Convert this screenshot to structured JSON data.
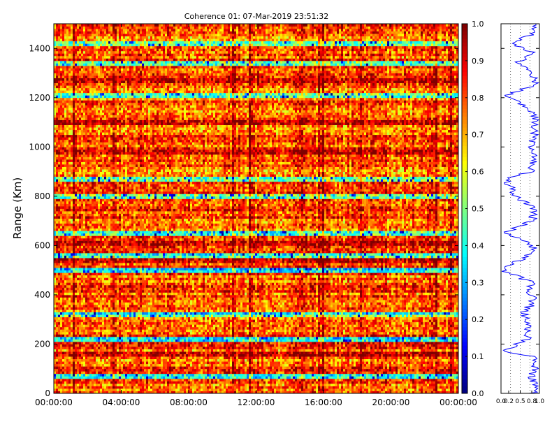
{
  "chart_data": [
    {
      "type": "heatmap",
      "title": "Coherence 01: 07-Mar-2019 23:51:32",
      "xlabel": "",
      "ylabel": "Range (Km)",
      "x_ticks": [
        "00:00:00",
        "04:00:00",
        "08:00:00",
        "12:00:00",
        "16:00:00",
        "20:00:00",
        "00:00:00"
      ],
      "y_ticks": [
        0,
        200,
        400,
        600,
        800,
        1000,
        1200,
        1400
      ],
      "ylim": [
        0,
        1500
      ],
      "x_range_hours": [
        0,
        24
      ],
      "colorbar": {
        "colormap": "jet",
        "ticks": [
          "0.0",
          "0.1",
          "0.2",
          "0.3",
          "0.4",
          "0.5",
          "0.6",
          "0.7",
          "0.8",
          "0.9",
          "1.0"
        ],
        "range": [
          0.0,
          1.0
        ]
      },
      "grid": false,
      "description_values": "Coherence mostly 0.7-1.0 (orange/red) with horizontal range bands of lower coherence (yellow/green/cyan/blue) near 70, 220, 320, 500, 560, 650, 800, 870, 1210, 1340, 1420 km"
    },
    {
      "type": "line",
      "title": "",
      "xlabel": "",
      "ylabel": "",
      "x_ticks": [
        "0.0",
        "0.2",
        "0.5",
        "0.8",
        "1.0"
      ],
      "xlim": [
        0.0,
        1.0
      ],
      "ylim": [
        0,
        1500
      ],
      "color": "#0000ff",
      "grid_x": "dotted",
      "profile": {
        "range_km": [
          0,
          40,
          70,
          100,
          150,
          170,
          220,
          270,
          320,
          380,
          420,
          450,
          500,
          560,
          600,
          650,
          700,
          750,
          800,
          870,
          900,
          950,
          1000,
          1050,
          1100,
          1150,
          1210,
          1250,
          1300,
          1340,
          1380,
          1420,
          1460,
          1500
        ],
        "coherence": [
          0.85,
          0.9,
          0.8,
          0.9,
          0.88,
          0.05,
          0.7,
          0.75,
          0.6,
          0.85,
          0.72,
          0.8,
          0.05,
          0.7,
          0.85,
          0.05,
          0.82,
          0.88,
          0.4,
          0.1,
          0.78,
          0.9,
          0.8,
          0.88,
          0.92,
          0.82,
          0.1,
          0.9,
          0.85,
          0.4,
          0.86,
          0.2,
          0.85,
          0.9
        ]
      }
    }
  ]
}
